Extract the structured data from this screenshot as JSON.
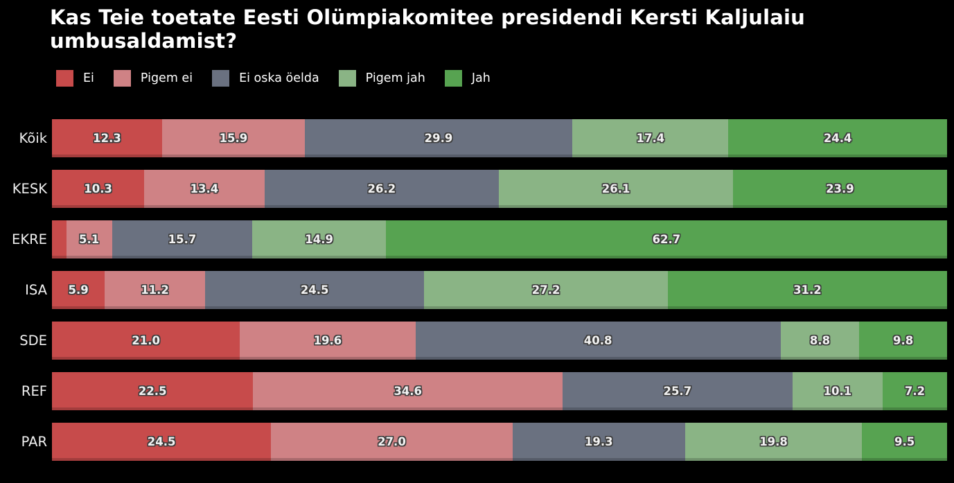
{
  "chart_data": {
    "type": "bar",
    "orientation": "horizontal",
    "stacked": true,
    "title": "Kas Teie toetate Eesti Olümpiakomitee presidendi Kersti Kaljulaiu umbusaldamist?",
    "categories": [
      "Kõik",
      "KESK",
      "EKRE",
      "ISA",
      "SDE",
      "REF",
      "PAR"
    ],
    "series": [
      {
        "name": "Ei",
        "color": "#c74b4b",
        "values": [
          12.3,
          10.3,
          1.6,
          5.9,
          21.0,
          22.5,
          24.5
        ]
      },
      {
        "name": "Pigem ei",
        "color": "#cf8285",
        "values": [
          15.9,
          13.4,
          5.1,
          11.2,
          19.6,
          34.6,
          27.0
        ]
      },
      {
        "name": "Ei oska öelda",
        "color": "#6a7180",
        "values": [
          29.9,
          26.2,
          15.7,
          24.5,
          40.8,
          25.7,
          19.3
        ]
      },
      {
        "name": "Pigem jah",
        "color": "#8ab485",
        "values": [
          17.4,
          26.1,
          14.9,
          27.2,
          8.8,
          10.1,
          19.8
        ]
      },
      {
        "name": "Jah",
        "color": "#57a351",
        "values": [
          24.4,
          23.9,
          62.7,
          31.2,
          9.8,
          7.2,
          9.5
        ]
      }
    ],
    "value_label_format": "one_decimal",
    "label_min_percent": 3,
    "xlim": [
      0,
      100
    ],
    "background": "#000000",
    "text_color": "#ffffff",
    "legend_position": "top-left",
    "grid": false
  }
}
